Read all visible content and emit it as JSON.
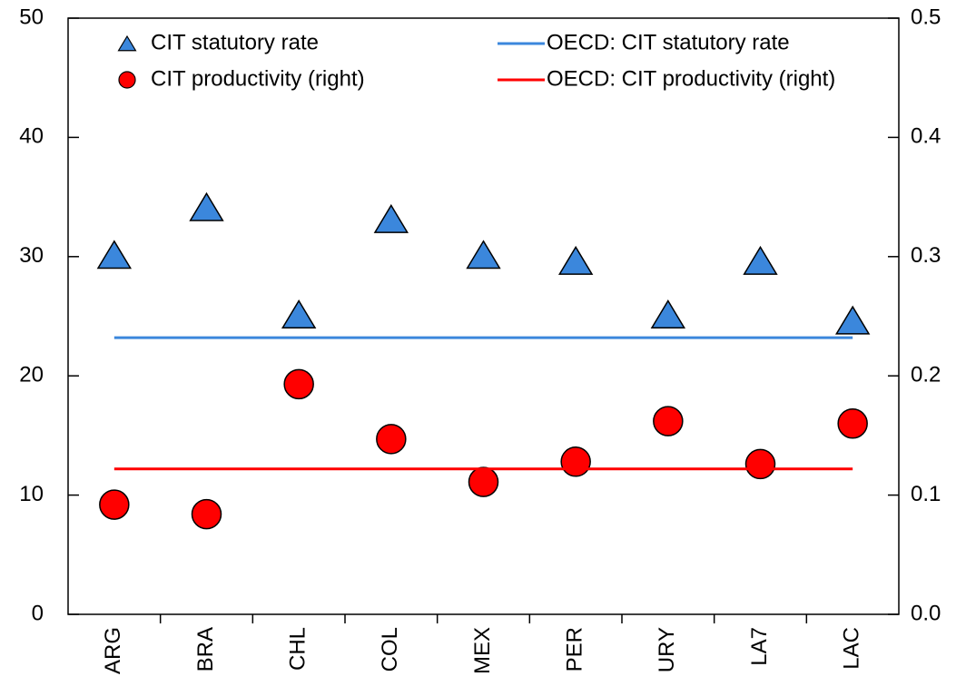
{
  "chart_data": {
    "type": "scatter",
    "categories": [
      "ARG",
      "BRA",
      "CHL",
      "COL",
      "MEX",
      "PER",
      "URY",
      "LA7",
      "LAC"
    ],
    "series": [
      {
        "name": "CIT statutory rate",
        "color": "#3b87dc",
        "marker": "triangle",
        "values": [
          30,
          34,
          25,
          33,
          30,
          29.5,
          25,
          29.5,
          24.5
        ]
      },
      {
        "name": "CIT productivity (right)",
        "color": "#ff0000",
        "marker": "circle",
        "axis": "y2",
        "values": [
          0.092,
          0.084,
          0.193,
          0.147,
          0.111,
          0.128,
          0.162,
          0.126,
          0.16
        ]
      },
      {
        "name": "OECD: CIT statutory rate",
        "color": "#3b87dc",
        "marker": "line",
        "value": 23.2
      },
      {
        "name": "OECD: CIT productivity (right)",
        "color": "#ff0000",
        "marker": "line",
        "axis": "y2",
        "value": 0.122
      }
    ],
    "ylim": [
      0,
      50
    ],
    "yticks": [
      0,
      10,
      20,
      30,
      40,
      50
    ],
    "y2lim": [
      0,
      0.5
    ],
    "y2ticks": [
      {
        "value": 0,
        "label": "0.0"
      },
      0.1,
      0.2,
      0.3,
      0.4,
      0.5
    ],
    "grid": false,
    "legend": "top"
  }
}
